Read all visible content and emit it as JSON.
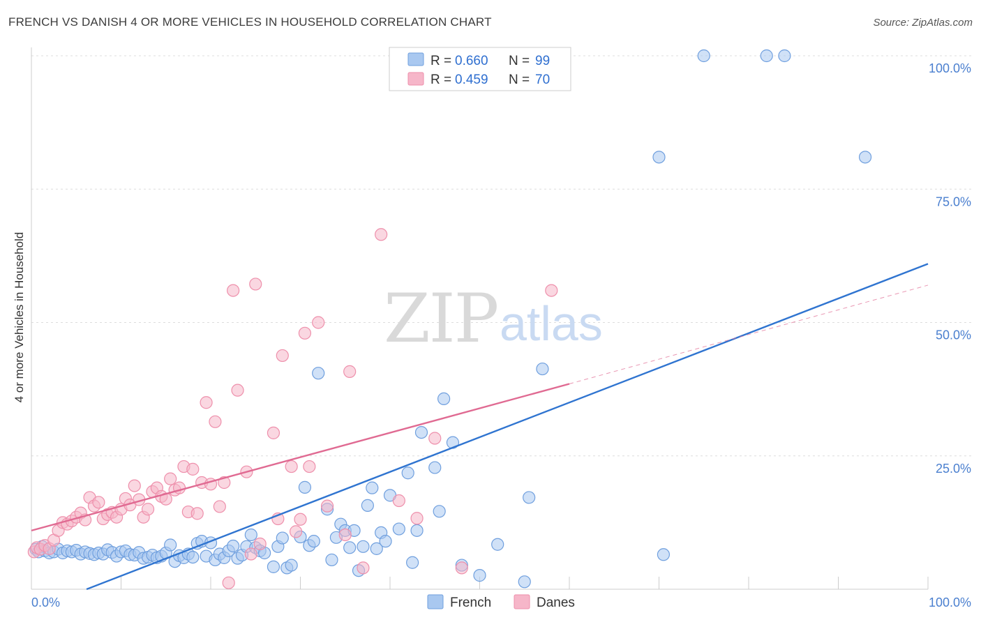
{
  "header": {
    "title": "FRENCH VS DANISH 4 OR MORE VEHICLES IN HOUSEHOLD CORRELATION CHART",
    "source": "Source: ZipAtlas.com"
  },
  "watermark": {
    "zip": "ZIP",
    "atlas": "atlas"
  },
  "legend": {
    "rows": [
      {
        "r_label": "R = ",
        "r_value": "0.660",
        "n_label": "N = ",
        "n_value": "99"
      },
      {
        "r_label": "R = ",
        "r_value": "0.459",
        "n_label": "N = ",
        "n_value": "70"
      }
    ]
  },
  "bottom_legend": {
    "french": "French",
    "danes": "Danes"
  },
  "colors": {
    "french_fill": "#a9c8f0",
    "french_stroke": "#6f9fde",
    "french_line": "#2f74d0",
    "danes_fill": "#f6b6c9",
    "danes_stroke": "#ee8fab",
    "danes_line": "#e06a92",
    "grid": "#dddddd",
    "tick_text": "#4a7fcf"
  },
  "chart_data": {
    "type": "scatter",
    "title": "FRENCH VS DANISH 4 OR MORE VEHICLES IN HOUSEHOLD CORRELATION CHART",
    "xlabel": "",
    "ylabel": "4 or more Vehicles in Household",
    "xlim": [
      0,
      100
    ],
    "ylim": [
      0,
      100
    ],
    "x_tick_labels": [
      "0.0%",
      "100.0%"
    ],
    "y_tick_labels": [
      "25.0%",
      "50.0%",
      "75.0%",
      "100.0%"
    ],
    "y_ticks": [
      25,
      50,
      75,
      100
    ],
    "grid": true,
    "legend_position": "top-center",
    "series": [
      {
        "name": "French",
        "r": 0.66,
        "n": 99,
        "trend": {
          "x": [
            0,
            100
          ],
          "y": [
            -4.0,
            61.0
          ]
        },
        "points": [
          [
            0.5,
            7.5
          ],
          [
            0.8,
            7.0
          ],
          [
            1.2,
            8.0
          ],
          [
            1.5,
            7.2
          ],
          [
            2.0,
            6.8
          ],
          [
            2.5,
            7.0
          ],
          [
            3.0,
            7.5
          ],
          [
            3.5,
            6.8
          ],
          [
            4.0,
            7.2
          ],
          [
            4.5,
            7.0
          ],
          [
            5.0,
            7.3
          ],
          [
            5.5,
            6.6
          ],
          [
            6.0,
            7.0
          ],
          [
            6.5,
            6.7
          ],
          [
            7.0,
            6.5
          ],
          [
            7.5,
            6.8
          ],
          [
            8.0,
            6.6
          ],
          [
            8.5,
            7.4
          ],
          [
            9.0,
            6.9
          ],
          [
            9.5,
            6.2
          ],
          [
            10.0,
            7.0
          ],
          [
            10.5,
            7.2
          ],
          [
            11.0,
            6.5
          ],
          [
            11.5,
            6.4
          ],
          [
            12.0,
            6.9
          ],
          [
            12.5,
            5.8
          ],
          [
            13.0,
            6.0
          ],
          [
            13.5,
            6.4
          ],
          [
            14.0,
            5.9
          ],
          [
            14.5,
            6.2
          ],
          [
            15.0,
            6.8
          ],
          [
            15.5,
            8.3
          ],
          [
            16.0,
            5.2
          ],
          [
            16.5,
            6.3
          ],
          [
            17.0,
            5.9
          ],
          [
            17.5,
            6.6
          ],
          [
            18.0,
            6.0
          ],
          [
            18.5,
            8.6
          ],
          [
            19.0,
            9.0
          ],
          [
            19.5,
            6.2
          ],
          [
            20.0,
            8.7
          ],
          [
            20.5,
            5.5
          ],
          [
            21.0,
            6.6
          ],
          [
            21.5,
            5.9
          ],
          [
            22.0,
            7.2
          ],
          [
            22.5,
            8.1
          ],
          [
            23.0,
            5.8
          ],
          [
            23.5,
            6.4
          ],
          [
            24.0,
            8.0
          ],
          [
            24.5,
            10.2
          ],
          [
            25.0,
            7.8
          ],
          [
            25.5,
            7.2
          ],
          [
            26.0,
            6.8
          ],
          [
            27.0,
            4.2
          ],
          [
            27.5,
            8.0
          ],
          [
            28.0,
            9.6
          ],
          [
            28.5,
            4.0
          ],
          [
            29.0,
            4.5
          ],
          [
            30.0,
            9.8
          ],
          [
            30.5,
            19.1
          ],
          [
            31.0,
            8.2
          ],
          [
            31.5,
            9.0
          ],
          [
            32.0,
            40.5
          ],
          [
            33.0,
            15.0
          ],
          [
            33.5,
            5.5
          ],
          [
            34.0,
            9.7
          ],
          [
            34.5,
            12.2
          ],
          [
            35.0,
            11.0
          ],
          [
            35.5,
            7.8
          ],
          [
            36.0,
            11.0
          ],
          [
            36.5,
            3.5
          ],
          [
            37.0,
            8.0
          ],
          [
            37.5,
            15.7
          ],
          [
            38.0,
            19.0
          ],
          [
            38.5,
            7.6
          ],
          [
            39.0,
            10.6
          ],
          [
            39.5,
            9.0
          ],
          [
            40.0,
            17.6
          ],
          [
            41.0,
            11.3
          ],
          [
            42.0,
            21.8
          ],
          [
            42.5,
            5.0
          ],
          [
            43.0,
            11.0
          ],
          [
            43.5,
            29.4
          ],
          [
            45.0,
            22.8
          ],
          [
            45.5,
            14.6
          ],
          [
            46.0,
            35.7
          ],
          [
            47.0,
            27.5
          ],
          [
            48.0,
            4.5
          ],
          [
            50.0,
            2.6
          ],
          [
            52.0,
            8.4
          ],
          [
            55.0,
            1.4
          ],
          [
            55.5,
            17.2
          ],
          [
            57.0,
            41.3
          ],
          [
            70.0,
            81.0
          ],
          [
            70.5,
            6.5
          ],
          [
            75.0,
            100.0
          ],
          [
            82.0,
            100.0
          ],
          [
            84.0,
            100.0
          ],
          [
            93.0,
            81.0
          ]
        ]
      },
      {
        "name": "Danes",
        "r": 0.459,
        "n": 70,
        "trend": {
          "x": [
            0,
            60
          ],
          "y": [
            11.0,
            38.5
          ]
        },
        "trend_dashed": {
          "x": [
            60,
            100
          ],
          "y": [
            38.5,
            57.0
          ]
        },
        "points": [
          [
            0.3,
            7.0
          ],
          [
            0.6,
            7.8
          ],
          [
            1.0,
            7.5
          ],
          [
            1.5,
            8.2
          ],
          [
            2.0,
            7.6
          ],
          [
            2.5,
            9.2
          ],
          [
            3.0,
            11.0
          ],
          [
            3.5,
            12.5
          ],
          [
            4.0,
            12.2
          ],
          [
            4.5,
            12.8
          ],
          [
            5.0,
            13.5
          ],
          [
            5.5,
            14.3
          ],
          [
            6.0,
            13.0
          ],
          [
            6.5,
            17.2
          ],
          [
            7.0,
            15.6
          ],
          [
            7.5,
            16.3
          ],
          [
            8.0,
            13.2
          ],
          [
            8.5,
            14.0
          ],
          [
            9.0,
            14.4
          ],
          [
            9.5,
            13.5
          ],
          [
            10.0,
            15.0
          ],
          [
            10.5,
            17.0
          ],
          [
            11.0,
            15.8
          ],
          [
            11.5,
            19.4
          ],
          [
            12.0,
            16.8
          ],
          [
            12.5,
            13.5
          ],
          [
            13.0,
            15.0
          ],
          [
            13.5,
            18.3
          ],
          [
            14.0,
            19.0
          ],
          [
            14.5,
            17.4
          ],
          [
            15.0,
            16.9
          ],
          [
            15.5,
            20.7
          ],
          [
            16.0,
            18.6
          ],
          [
            16.5,
            19.0
          ],
          [
            17.0,
            23.0
          ],
          [
            17.5,
            14.5
          ],
          [
            18.0,
            22.5
          ],
          [
            18.5,
            14.2
          ],
          [
            19.0,
            20.0
          ],
          [
            19.5,
            35.0
          ],
          [
            20.0,
            19.7
          ],
          [
            20.5,
            31.4
          ],
          [
            21.0,
            15.5
          ],
          [
            21.5,
            20.0
          ],
          [
            22.0,
            1.2
          ],
          [
            22.5,
            56.0
          ],
          [
            23.0,
            37.3
          ],
          [
            24.0,
            22.0
          ],
          [
            24.5,
            6.6
          ],
          [
            25.0,
            57.2
          ],
          [
            25.5,
            8.5
          ],
          [
            27.0,
            29.3
          ],
          [
            27.5,
            13.2
          ],
          [
            28.0,
            43.8
          ],
          [
            29.0,
            23.0
          ],
          [
            29.5,
            10.8
          ],
          [
            30.0,
            13.1
          ],
          [
            30.5,
            48.0
          ],
          [
            31.0,
            23.0
          ],
          [
            32.0,
            50.0
          ],
          [
            33.0,
            15.6
          ],
          [
            35.0,
            10.2
          ],
          [
            35.5,
            40.8
          ],
          [
            37.0,
            4.0
          ],
          [
            39.0,
            66.5
          ],
          [
            41.0,
            16.6
          ],
          [
            43.0,
            13.3
          ],
          [
            45.0,
            28.3
          ],
          [
            48.0,
            4.0
          ],
          [
            58.0,
            56.0
          ]
        ]
      }
    ]
  }
}
